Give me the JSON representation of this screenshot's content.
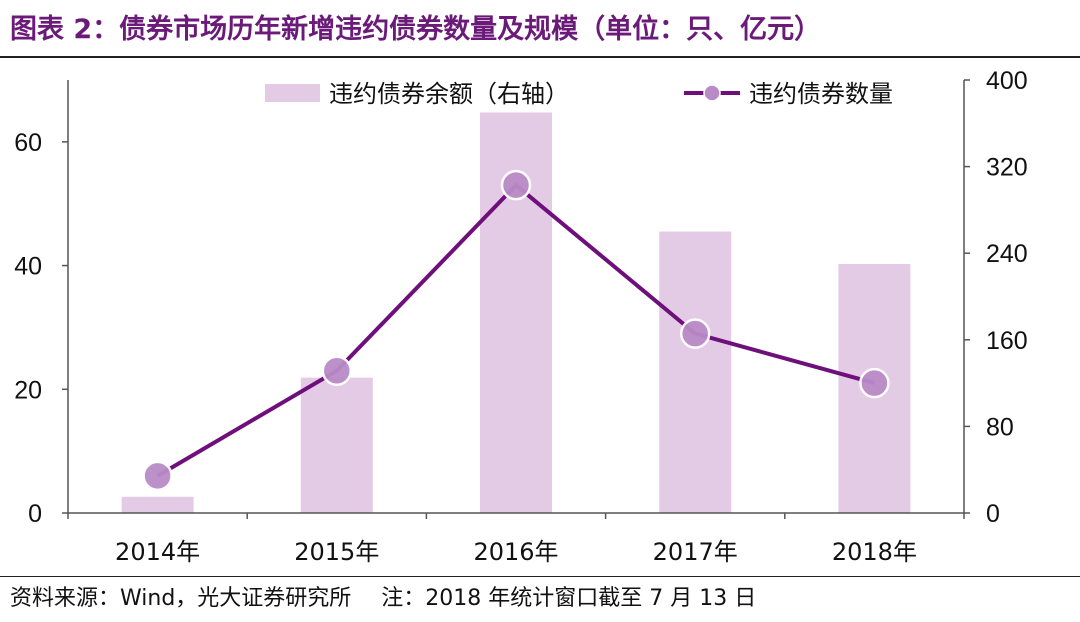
{
  "title": "图表 2：债券市场历年新增违约债券数量及规模（单位：只、亿元）",
  "footer": {
    "source": "资料来源：Wind，光大证券研究所",
    "note": "注：2018 年统计窗口截至 7 月 13 日"
  },
  "colors": {
    "title": "#6b1a7a",
    "bar": "#e3cbe6",
    "line": "#6f0f7c",
    "marker": "#b98bc6"
  },
  "chart_data": {
    "type": "bar",
    "categories": [
      "2014年",
      "2015年",
      "2016年",
      "2017年",
      "2018年"
    ],
    "series": [
      {
        "name": "违约债券余额（右轴）",
        "type": "bar",
        "axis": "right",
        "values": [
          15,
          125,
          370,
          260,
          230
        ]
      },
      {
        "name": "违约债券数量",
        "type": "line",
        "axis": "left",
        "values": [
          6,
          23,
          53,
          29,
          21
        ]
      }
    ],
    "y_left": {
      "ylim": [
        0,
        70
      ],
      "ticks": [
        0,
        20,
        40,
        60
      ]
    },
    "y_right": {
      "ylim": [
        0,
        400
      ],
      "ticks": [
        0,
        80,
        160,
        240,
        320,
        400
      ]
    },
    "legend": "top",
    "grid": false
  }
}
